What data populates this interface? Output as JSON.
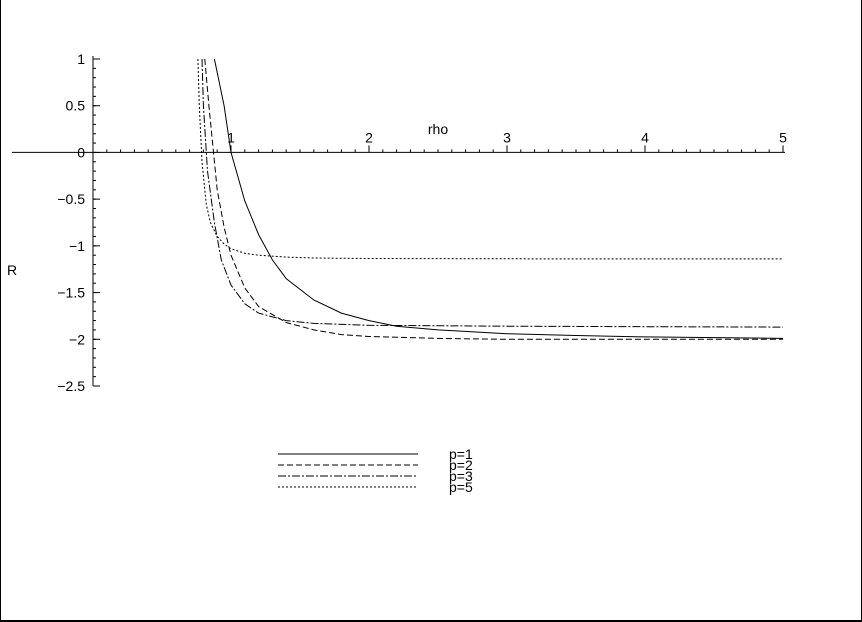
{
  "chart_data": {
    "type": "line",
    "xlabel": "rho",
    "ylabel": "R",
    "xlim": [
      0,
      5
    ],
    "ylim": [
      -2.5,
      1
    ],
    "x_ticks": [
      "1",
      "2",
      "3",
      "4",
      "5"
    ],
    "y_ticks": [
      "1",
      "0.5",
      "0",
      "−0.5",
      "−1",
      "−1.5",
      "−2",
      "−2.5"
    ],
    "x_tick_values": [
      1,
      2,
      3,
      4,
      5
    ],
    "y_tick_values": [
      1,
      0.5,
      0,
      -0.5,
      -1,
      -1.5,
      -2,
      -2.5
    ],
    "grid": false,
    "legend_position": "bottom-center",
    "series": [
      {
        "name": "p=1",
        "dash": "solid",
        "color": "#000000",
        "x": [
          0.88,
          0.95,
          1.0,
          1.1,
          1.2,
          1.3,
          1.4,
          1.6,
          1.8,
          2.0,
          2.2,
          2.5,
          3.0,
          3.5,
          4.0,
          5.0
        ],
        "y": [
          1.0,
          0.5,
          0.0,
          -0.52,
          -0.88,
          -1.15,
          -1.35,
          -1.58,
          -1.72,
          -1.8,
          -1.86,
          -1.9,
          -1.94,
          -1.96,
          -1.975,
          -1.99
        ]
      },
      {
        "name": "p=2",
        "dash": "6,3",
        "color": "#000000",
        "x": [
          0.81,
          0.84,
          0.9,
          0.95,
          1.0,
          1.1,
          1.2,
          1.4,
          1.6,
          1.8,
          2.0,
          2.5,
          3.0,
          4.0,
          5.0
        ],
        "y": [
          1.0,
          0.5,
          -0.4,
          -0.8,
          -1.1,
          -1.45,
          -1.65,
          -1.82,
          -1.9,
          -1.95,
          -1.97,
          -1.99,
          -2.0,
          -2.0,
          -2.0
        ]
      },
      {
        "name": "p=3",
        "dash": "8,2,2,2",
        "color": "#000000",
        "x": [
          0.79,
          0.8,
          0.83,
          0.88,
          0.93,
          1.0,
          1.1,
          1.2,
          1.4,
          1.6,
          2.0,
          3.0,
          4.0,
          5.0
        ],
        "y": [
          1.0,
          0.5,
          -0.2,
          -0.75,
          -1.15,
          -1.42,
          -1.62,
          -1.72,
          -1.8,
          -1.83,
          -1.85,
          -1.86,
          -1.865,
          -1.87
        ]
      },
      {
        "name": "p=5",
        "dash": "2,2",
        "color": "#000000",
        "x": [
          0.76,
          0.77,
          0.79,
          0.82,
          0.85,
          0.9,
          0.95,
          1.0,
          1.1,
          1.2,
          1.4,
          1.6,
          2.0,
          3.0,
          4.0,
          5.0
        ],
        "y": [
          1.0,
          0.5,
          -0.1,
          -0.55,
          -0.75,
          -0.9,
          -0.98,
          -1.03,
          -1.08,
          -1.1,
          -1.12,
          -1.13,
          -1.135,
          -1.138,
          -1.14,
          -1.14
        ]
      }
    ]
  }
}
